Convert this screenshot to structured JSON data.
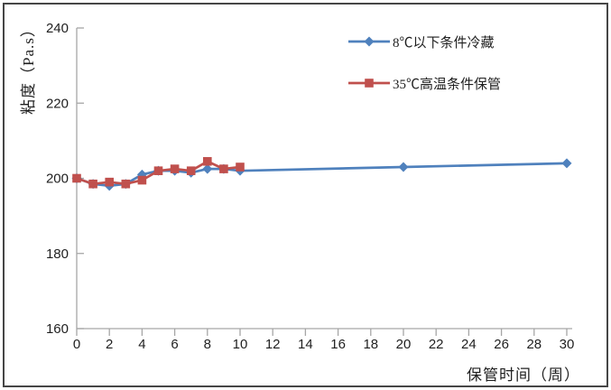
{
  "chart_data": {
    "type": "line",
    "title": "",
    "ylabel": "粘度（Pa.s）",
    "xlabel": "保管时间（周）",
    "ylim": [
      160,
      240
    ],
    "xlim": [
      0,
      30
    ],
    "y_ticks": [
      160,
      180,
      200,
      220,
      240
    ],
    "x_ticks": [
      0,
      2,
      4,
      6,
      8,
      10,
      12,
      14,
      16,
      18,
      20,
      22,
      24,
      26,
      28,
      30
    ],
    "grid": false,
    "legend_position": "inside-top-center",
    "series": [
      {
        "name": "8℃以下条件冷藏",
        "color": "#4F81BD",
        "marker": "diamond",
        "x": [
          0,
          1,
          2,
          3,
          4,
          5,
          6,
          7,
          8,
          9,
          10,
          20,
          30
        ],
        "y": [
          200,
          198.5,
          198,
          198.5,
          201,
          202,
          202,
          201.5,
          202.5,
          202.5,
          202,
          203,
          204
        ]
      },
      {
        "name": "35℃高温条件保管",
        "color": "#C0504D",
        "marker": "square",
        "x": [
          0,
          1,
          2,
          3,
          4,
          5,
          6,
          7,
          8,
          9,
          10
        ],
        "y": [
          200,
          198.5,
          199,
          198.5,
          199.5,
          202,
          202.5,
          202,
          204.5,
          202.5,
          203
        ]
      }
    ]
  },
  "colors": {
    "background": "#FFFFFF",
    "border": "#464646",
    "axis": "#A6A6A6",
    "text": "#1F1F1F",
    "series_blue": "#4F81BD",
    "series_red": "#C0504D"
  }
}
